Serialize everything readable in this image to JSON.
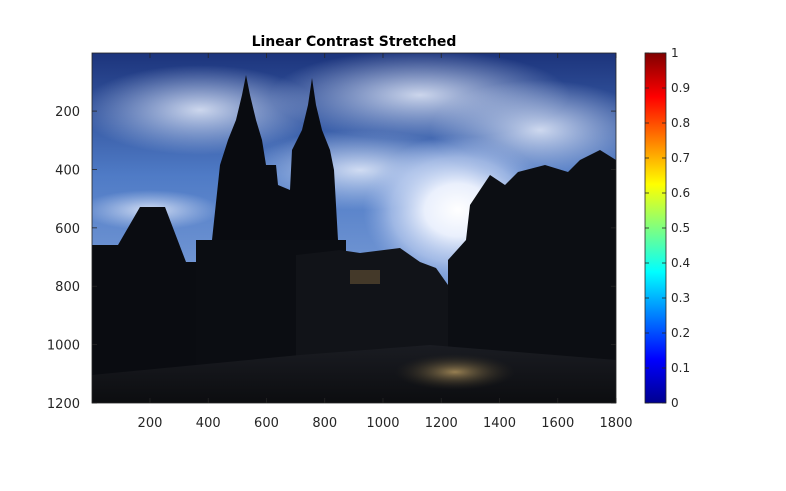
{
  "chart_data": {
    "type": "heatmap",
    "title": "Linear Contrast Stretched",
    "xlabel": "",
    "ylabel": "",
    "image_content": "photo-old-town-square-cathedral-silhouette",
    "xlim": [
      1,
      1800
    ],
    "ylim": [
      1,
      1200
    ],
    "y_reversed": true,
    "x_ticks": [
      200,
      400,
      600,
      800,
      1000,
      1200,
      1400,
      1600,
      1800
    ],
    "y_ticks": [
      200,
      400,
      600,
      800,
      1000,
      1200
    ],
    "colorbar": {
      "colormap": "jet",
      "clim": [
        0,
        1
      ],
      "ticks": [
        0,
        0.1,
        0.2,
        0.3,
        0.4,
        0.5,
        0.6,
        0.7,
        0.8,
        0.9,
        1
      ],
      "tick_labels": [
        "0",
        "0.1",
        "0.2",
        "0.3",
        "0.4",
        "0.5",
        "0.6",
        "0.7",
        "0.8",
        "0.9",
        "1"
      ]
    },
    "grid": false,
    "legend": "none"
  },
  "colors": {
    "axis": "#262626",
    "sky_top": "#1f3a86",
    "sky_mid": "#5b86cf",
    "sun": "#f4f8ff",
    "silhouette": "#0b0d13",
    "ground": "#14161c"
  }
}
